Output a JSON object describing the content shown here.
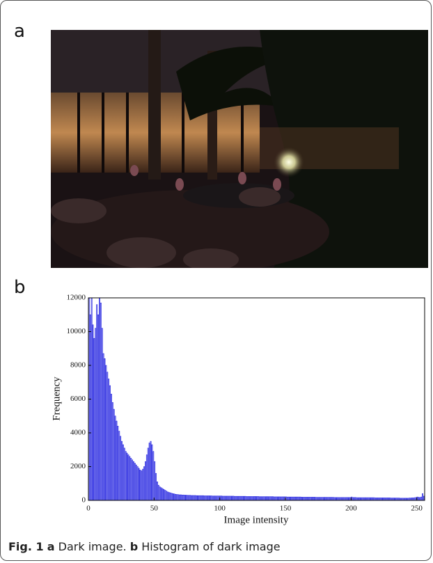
{
  "panel_labels": [
    "a",
    "b"
  ],
  "caption": {
    "figure": "Fig. 1",
    "a_label": "a",
    "a_text": "Dark image.",
    "b_label": "b",
    "b_text": "Histogram of dark image"
  },
  "chart_data": {
    "type": "histogram",
    "xlabel": "Image intensity",
    "ylabel": "Frequency",
    "color": "#2020e0",
    "xlim": [
      0,
      256
    ],
    "xticks": [
      0,
      50,
      100,
      150,
      200,
      250
    ],
    "ylim": [
      0,
      12000
    ],
    "yticks": [
      0,
      2000,
      4000,
      6000,
      8000,
      10000,
      12000
    ],
    "bins": [
      0,
      1,
      2,
      3,
      4,
      5,
      6,
      7,
      8,
      9,
      10,
      11,
      12,
      13,
      14,
      15,
      16,
      17,
      18,
      19,
      20,
      21,
      22,
      23,
      24,
      25,
      26,
      27,
      28,
      29,
      30,
      31,
      32,
      33,
      34,
      35,
      36,
      37,
      38,
      39,
      40,
      41,
      42,
      43,
      44,
      45,
      46,
      47,
      48,
      49,
      50,
      51,
      52,
      53,
      54,
      55,
      56,
      57,
      58,
      59,
      60,
      61,
      62,
      63,
      64,
      65,
      66,
      67,
      68,
      69,
      70,
      71,
      72,
      73,
      74,
      75,
      76,
      77,
      78,
      79,
      80,
      81,
      82,
      83,
      84,
      85,
      86,
      87,
      88,
      89,
      90,
      91,
      92,
      93,
      94,
      95,
      96,
      97,
      98,
      99,
      100,
      101,
      102,
      103,
      104,
      105,
      106,
      107,
      108,
      109,
      110,
      111,
      112,
      113,
      114,
      115,
      116,
      117,
      118,
      119,
      120,
      121,
      122,
      123,
      124,
      125,
      126,
      127,
      128,
      129,
      130,
      131,
      132,
      133,
      134,
      135,
      136,
      137,
      138,
      139,
      140,
      141,
      142,
      143,
      144,
      145,
      146,
      147,
      148,
      149,
      150,
      151,
      152,
      153,
      154,
      155,
      156,
      157,
      158,
      159,
      160,
      161,
      162,
      163,
      164,
      165,
      166,
      167,
      168,
      169,
      170,
      171,
      172,
      173,
      174,
      175,
      176,
      177,
      178,
      179,
      180,
      181,
      182,
      183,
      184,
      185,
      186,
      187,
      188,
      189,
      190,
      191,
      192,
      193,
      194,
      195,
      196,
      197,
      198,
      199,
      200,
      201,
      202,
      203,
      204,
      205,
      206,
      207,
      208,
      209,
      210,
      211,
      212,
      213,
      214,
      215,
      216,
      217,
      218,
      219,
      220,
      221,
      222,
      223,
      224,
      225,
      226,
      227,
      228,
      229,
      230,
      231,
      232,
      233,
      234,
      235,
      236,
      237,
      238,
      239,
      240,
      241,
      242,
      243,
      244,
      245,
      246,
      247,
      248,
      249,
      250,
      251,
      252,
      253,
      254,
      255,
      256
    ],
    "counts": [
      12000,
      11000,
      12000,
      10400,
      9600,
      10200,
      11600,
      11000,
      12000,
      11700,
      10200,
      8700,
      8400,
      8000,
      7600,
      7200,
      6800,
      6300,
      5800,
      5400,
      5000,
      4700,
      4400,
      4100,
      3800,
      3500,
      3300,
      3100,
      2900,
      2800,
      2700,
      2600,
      2500,
      2400,
      2300,
      2200,
      2100,
      2000,
      1900,
      1800,
      1750,
      1850,
      2000,
      2300,
      2700,
      3100,
      3400,
      3500,
      3300,
      2900,
      2300,
      1600,
      1100,
      900,
      800,
      750,
      700,
      650,
      600,
      550,
      500,
      470,
      450,
      420,
      400,
      380,
      360,
      350,
      340,
      330,
      330,
      320,
      320,
      310,
      310,
      300,
      300,
      300,
      290,
      290,
      290,
      290,
      280,
      280,
      280,
      280,
      280,
      280,
      270,
      270,
      270,
      270,
      270,
      270,
      260,
      260,
      260,
      260,
      260,
      260,
      260,
      260,
      250,
      250,
      250,
      250,
      250,
      250,
      250,
      250,
      250,
      240,
      240,
      240,
      240,
      240,
      240,
      240,
      240,
      240,
      230,
      230,
      230,
      230,
      230,
      230,
      230,
      230,
      230,
      230,
      220,
      220,
      220,
      220,
      220,
      220,
      220,
      220,
      220,
      220,
      220,
      210,
      210,
      210,
      210,
      210,
      210,
      210,
      210,
      210,
      210,
      200,
      200,
      200,
      200,
      200,
      200,
      200,
      200,
      200,
      200,
      200,
      190,
      190,
      190,
      190,
      190,
      190,
      190,
      190,
      190,
      190,
      190,
      180,
      180,
      180,
      180,
      180,
      180,
      180,
      180,
      180,
      180,
      180,
      180,
      180,
      180,
      170,
      170,
      170,
      170,
      170,
      170,
      170,
      170,
      170,
      170,
      170,
      170,
      170,
      200,
      170,
      170,
      170,
      160,
      160,
      160,
      160,
      160,
      160,
      160,
      160,
      160,
      160,
      160,
      160,
      160,
      160,
      150,
      150,
      150,
      150,
      150,
      150,
      150,
      150,
      150,
      150,
      150,
      150,
      140,
      140,
      140,
      140,
      140,
      140,
      140,
      130,
      130,
      130,
      130,
      130,
      130,
      130,
      140,
      140,
      150,
      150,
      160,
      170,
      200,
      180,
      170,
      200,
      400,
      250
    ]
  }
}
